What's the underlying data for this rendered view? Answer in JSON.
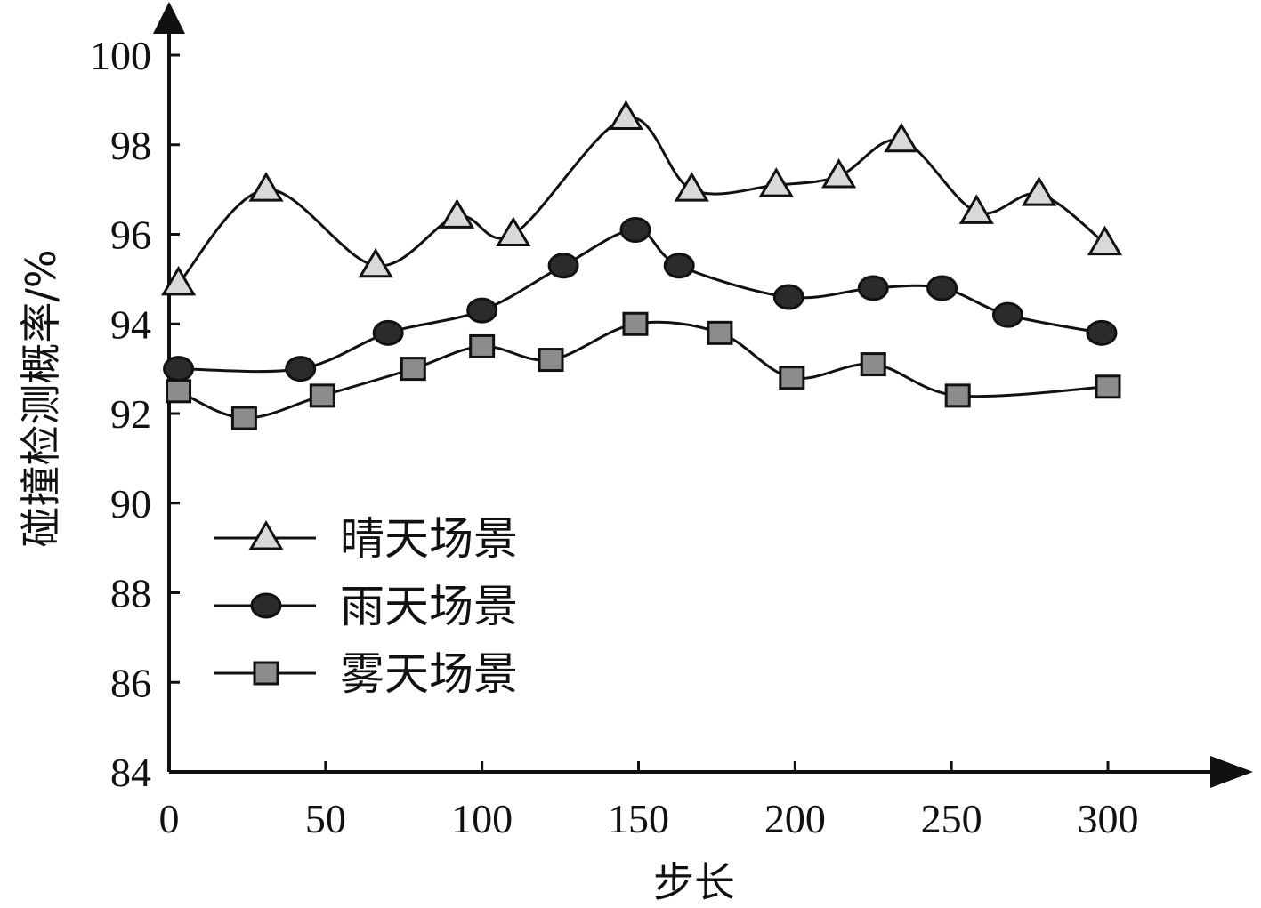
{
  "chart_data": {
    "type": "line",
    "xlabel": "步长",
    "ylabel": "碰撞检测概率/%",
    "xlim": [
      0,
      300
    ],
    "ylim": [
      84,
      100
    ],
    "x_ticks": [
      0,
      50,
      100,
      150,
      200,
      250,
      300
    ],
    "y_ticks": [
      84,
      86,
      88,
      90,
      92,
      94,
      96,
      98,
      100
    ],
    "grid": false,
    "legend_position": "lower-left",
    "series": [
      {
        "name": "晴天场景",
        "marker": "triangle",
        "color": "#d9d9d9",
        "points": [
          [
            3,
            94.9
          ],
          [
            31,
            97.0
          ],
          [
            66,
            95.3
          ],
          [
            92,
            96.4
          ],
          [
            110,
            96.0
          ],
          [
            146,
            98.6
          ],
          [
            167,
            97.0
          ],
          [
            194,
            97.1
          ],
          [
            214,
            97.3
          ],
          [
            234,
            98.1
          ],
          [
            258,
            96.5
          ],
          [
            278,
            96.9
          ],
          [
            299,
            95.8
          ]
        ]
      },
      {
        "name": "雨天场景",
        "marker": "circle",
        "color": "#2b2b2b",
        "points": [
          [
            3,
            93.0
          ],
          [
            42,
            93.0
          ],
          [
            70,
            93.8
          ],
          [
            100,
            94.3
          ],
          [
            126,
            95.3
          ],
          [
            149,
            96.1
          ],
          [
            163,
            95.3
          ],
          [
            198,
            94.6
          ],
          [
            225,
            94.8
          ],
          [
            247,
            94.8
          ],
          [
            268,
            94.2
          ],
          [
            298,
            93.8
          ]
        ]
      },
      {
        "name": "雾天场景",
        "marker": "square",
        "color": "#8c8c8c",
        "points": [
          [
            3,
            92.5
          ],
          [
            24,
            91.9
          ],
          [
            49,
            92.4
          ],
          [
            78,
            93.0
          ],
          [
            100,
            93.5
          ],
          [
            122,
            93.2
          ],
          [
            149,
            94.0
          ],
          [
            176,
            93.8
          ],
          [
            199,
            92.8
          ],
          [
            225,
            93.1
          ],
          [
            252,
            92.4
          ],
          [
            300,
            92.6
          ]
        ]
      }
    ]
  }
}
